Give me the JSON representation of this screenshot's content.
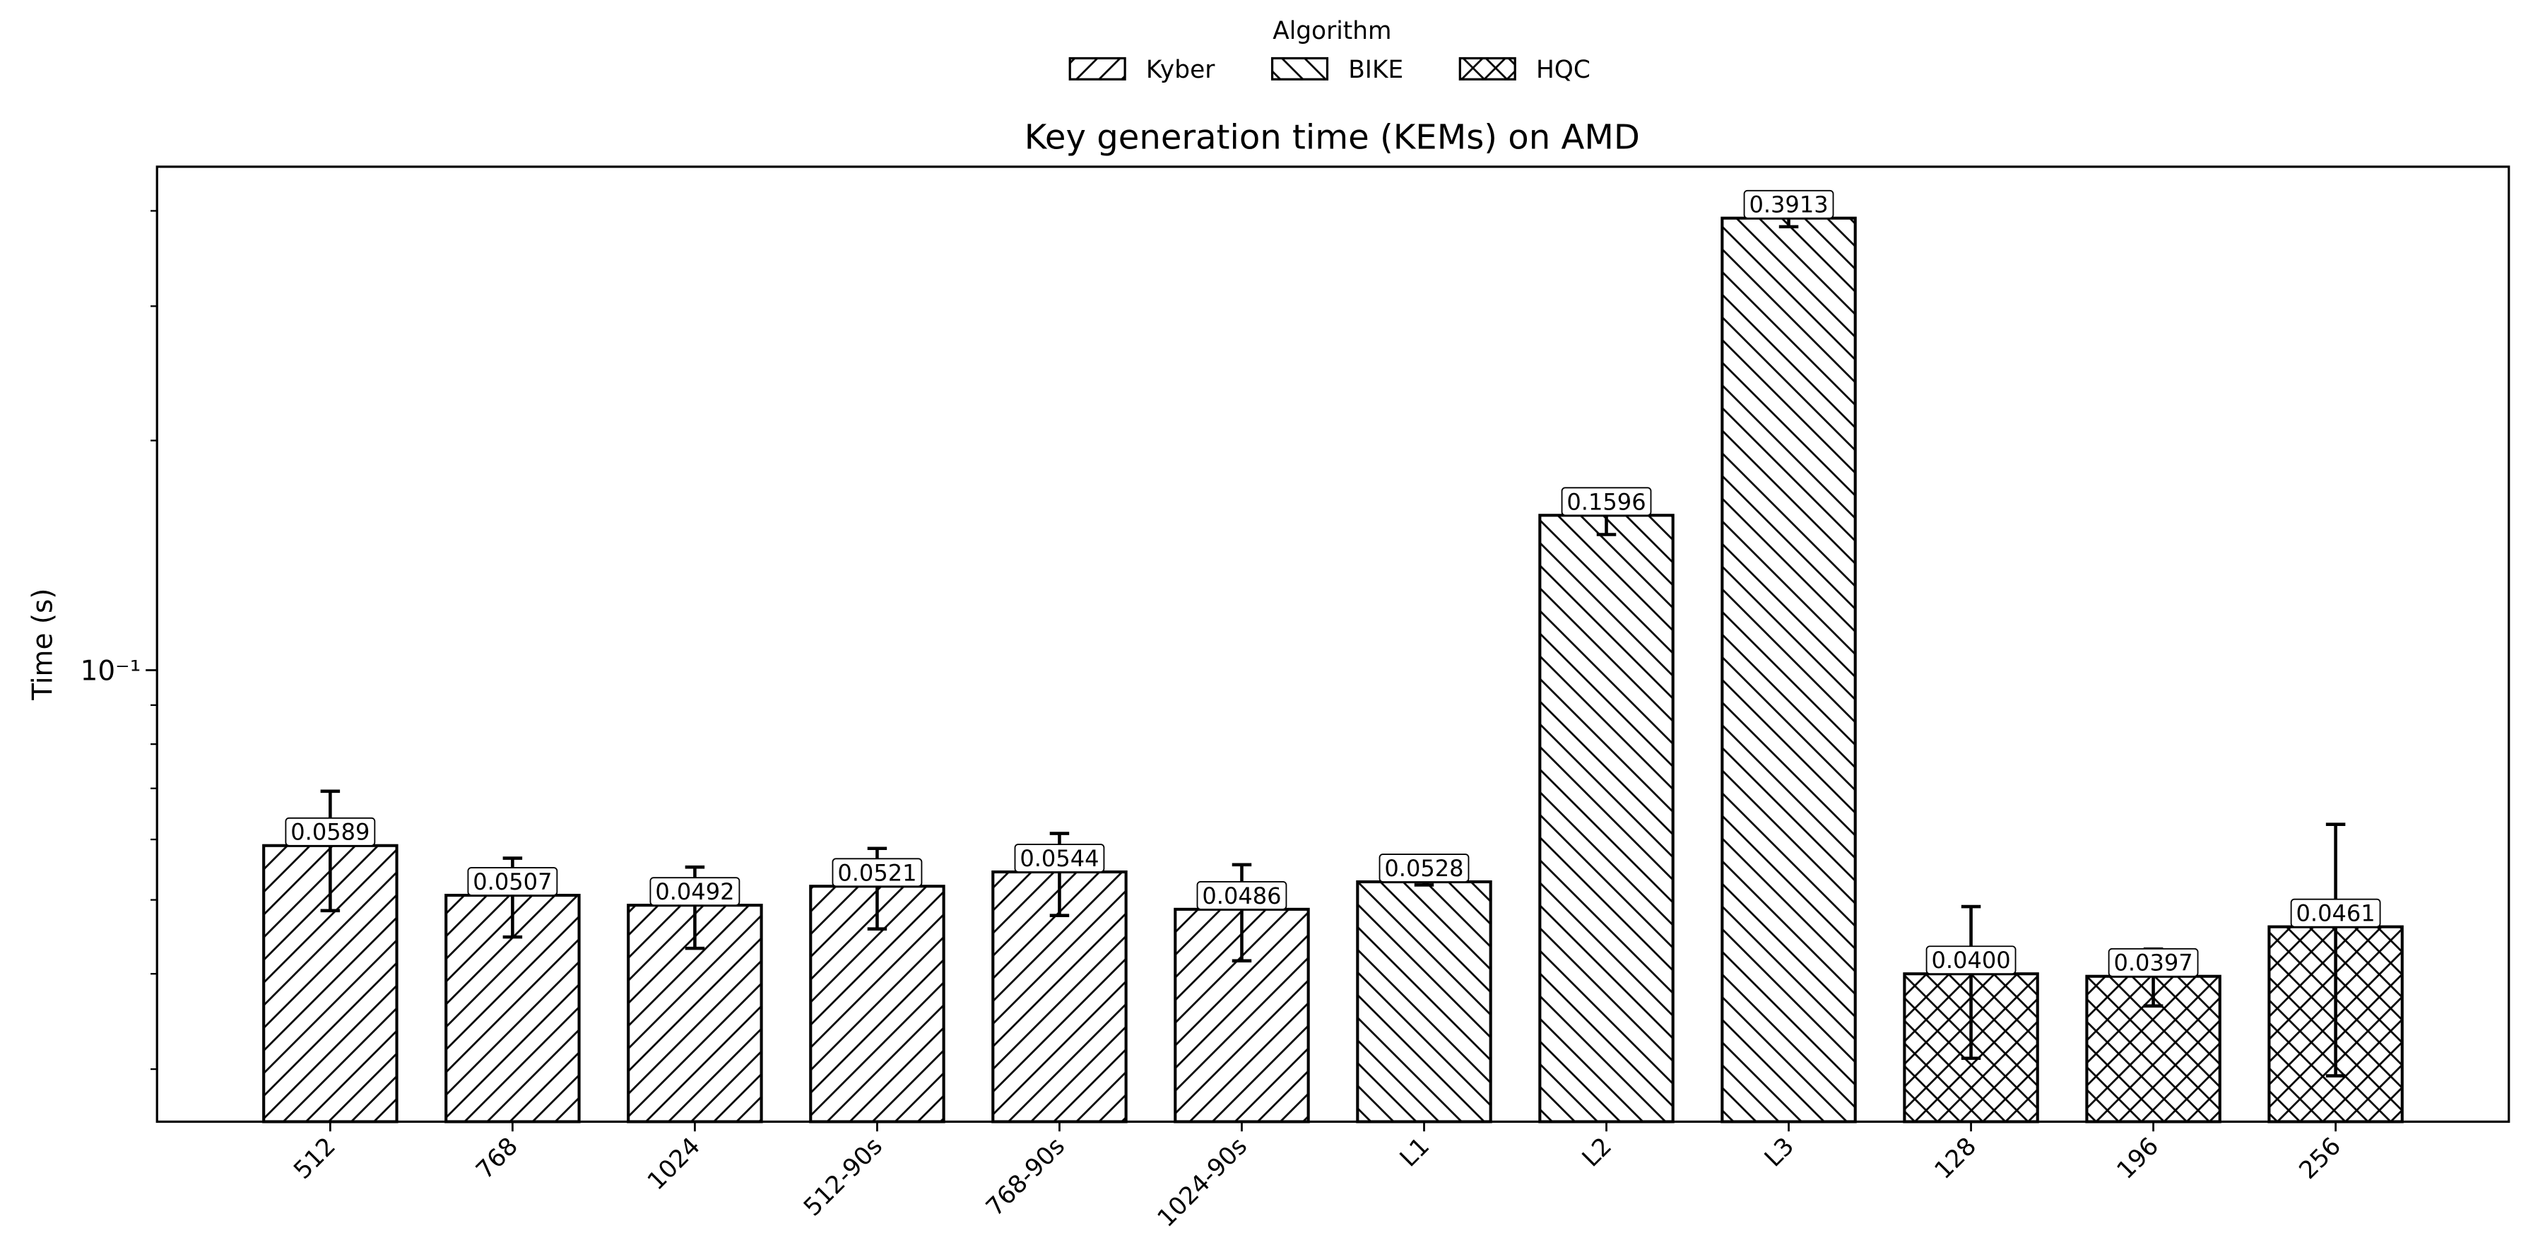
{
  "chart_data": {
    "type": "bar",
    "title": "Key generation time (KEMs) on AMD",
    "y_label": "Time (s)",
    "legend_title": "Algorithm",
    "legend_position": "upper center",
    "y_scale": "log",
    "categories": [
      "512",
      "768",
      "1024",
      "512-90s",
      "768-90s",
      "1024-90s",
      "L1",
      "L2",
      "L3",
      "128",
      "196",
      "256"
    ],
    "series": [
      {
        "name": "Kyber",
        "color": "#ffffff",
        "hatch": "/",
        "values": [
          0.0589,
          0.0507,
          0.0492,
          0.0521,
          0.0544,
          0.0486,
          null,
          null,
          null,
          null,
          null,
          null
        ],
        "errors": [
          0.0105,
          0.006,
          0.006,
          0.0063,
          0.0067,
          0.007,
          null,
          null,
          null,
          null,
          null,
          null
        ],
        "value_labels": [
          "0.0589",
          "0.0507",
          "0.0492",
          "0.0521",
          "0.0544",
          "0.0486",
          null,
          null,
          null,
          null,
          null,
          null
        ]
      },
      {
        "name": "BIKE",
        "color": "#ffffff",
        "hatch": "\\",
        "values": [
          null,
          null,
          null,
          null,
          null,
          null,
          0.0528,
          0.1596,
          0.3913,
          null,
          null,
          null
        ],
        "errors": [
          null,
          null,
          null,
          null,
          null,
          null,
          0.0005,
          0.009,
          0.01,
          null,
          null,
          null
        ],
        "value_labels": [
          null,
          null,
          null,
          null,
          null,
          null,
          "0.0528",
          "0.1596",
          "0.3913",
          null,
          null,
          null
        ]
      },
      {
        "name": "HQC",
        "color": "#ffffff",
        "hatch": "x",
        "values": [
          null,
          null,
          null,
          null,
          null,
          null,
          null,
          null,
          null,
          0.04,
          0.0397,
          0.0461
        ],
        "errors": [
          null,
          null,
          null,
          null,
          null,
          null,
          null,
          null,
          null,
          0.009,
          0.0034,
          0.0167
        ],
        "value_labels": [
          null,
          null,
          null,
          null,
          null,
          null,
          null,
          null,
          null,
          "0.0400",
          "0.0397",
          "0.0461"
        ]
      }
    ],
    "ylim": [
      0.0256,
      0.457
    ],
    "yticks": [
      {
        "value": 0.1,
        "label": "10⁻¹"
      }
    ],
    "yminorticks": [
      0.03,
      0.04,
      0.05,
      0.06,
      0.07,
      0.08,
      0.09,
      0.2,
      0.3,
      0.4
    ]
  }
}
